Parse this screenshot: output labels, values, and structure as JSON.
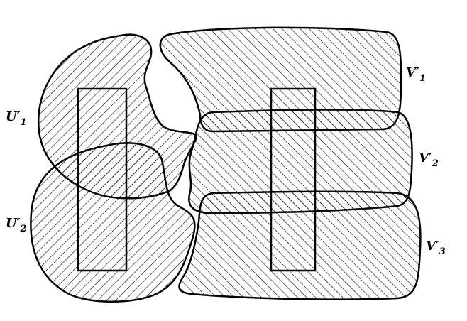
{
  "colors": {
    "stroke": "#000000",
    "hatch": "#000000",
    "background": "#ffffff"
  },
  "labels": {
    "u1": {
      "base": "U′",
      "sub": "1"
    },
    "u2": {
      "base": "U′",
      "sub": "2"
    },
    "v1": {
      "base": "V′",
      "sub": "1"
    },
    "v2": {
      "base": "V′",
      "sub": "2"
    },
    "v3": {
      "base": "V′",
      "sub": "3"
    }
  }
}
